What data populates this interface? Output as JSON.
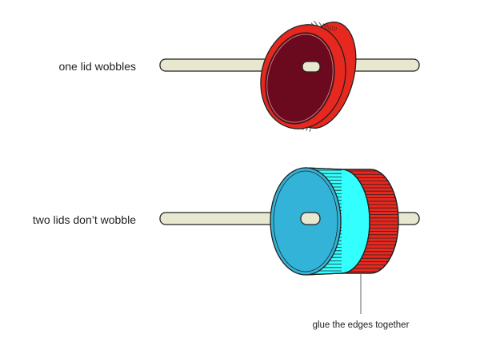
{
  "labels": {
    "top": "one lid wobbles",
    "bottom": "two lids don’t wobble",
    "callout": "glue the edges together"
  },
  "colors": {
    "axle_fill": "#e8e8d0",
    "outline": "#222222",
    "red_lid": "#e8281e",
    "red_lid_inside": "#6b0a1e",
    "blue_lid_face": "#33b3d8",
    "cyan_rim": "#33ffff"
  }
}
